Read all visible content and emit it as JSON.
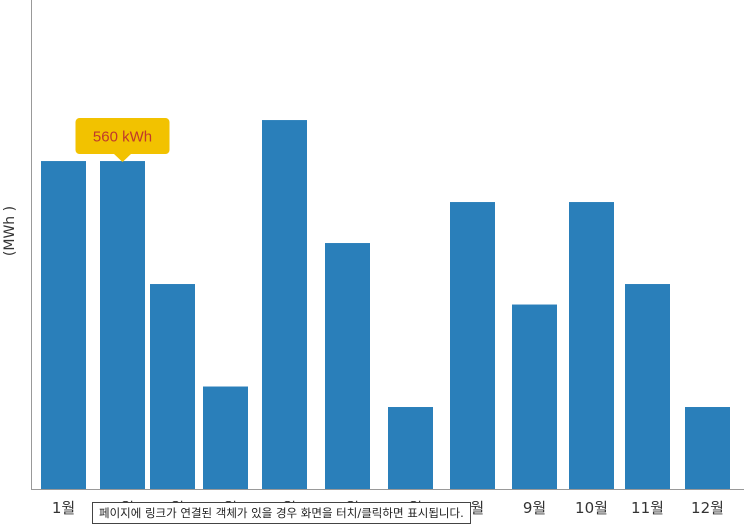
{
  "chart_data": {
    "type": "bar",
    "categories": [
      "1월",
      "2월",
      "3월",
      "4월",
      "5월",
      "6월",
      "7월",
      "8월",
      "9월",
      "10월",
      "11월",
      "12월"
    ],
    "series": [
      {
        "values": [
          560,
          560,
          350,
          175,
          630,
          420,
          140,
          490,
          315,
          490,
          350,
          140
        ]
      }
    ],
    "ylabel": "(MWh )",
    "ylim": [
      0,
      835
    ],
    "grid": false,
    "colors": {
      "bar": "#2a7fba",
      "tooltip": "#f2c200",
      "tooltip_text": "#c0392b"
    },
    "tooltip": {
      "category_index": 1,
      "text": "560 kWh"
    }
  },
  "notice": "페이지에 링크가 연결된 객체가 있을 경우 화면을 터치/클릭하면 표시됩니다."
}
